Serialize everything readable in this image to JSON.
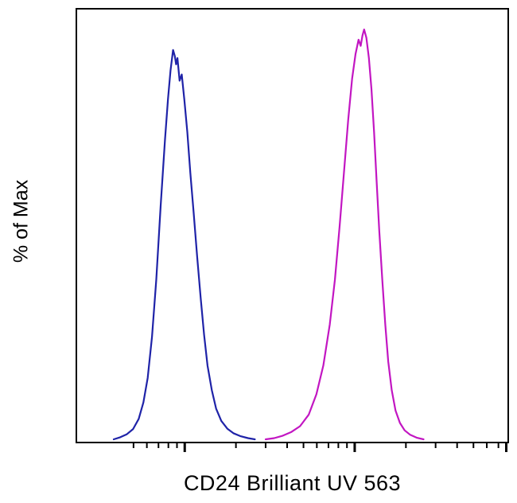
{
  "figure": {
    "background_color": "#ffffff",
    "border_color": "#000000"
  },
  "chart_data": {
    "type": "line",
    "subtype": "flow-cytometry-histogram",
    "title": "",
    "xlabel": "CD24 Brilliant UV 563",
    "ylabel": "% of Max",
    "x_scale": "log",
    "y_range_pct": [
      0,
      100
    ],
    "grid": false,
    "legend": "none",
    "series": [
      {
        "name": "blue",
        "color": "#1f23a8",
        "points": [
          [
            0.085,
            0
          ],
          [
            0.1,
            0.5
          ],
          [
            0.115,
            1.2
          ],
          [
            0.13,
            2.5
          ],
          [
            0.143,
            5
          ],
          [
            0.154,
            9
          ],
          [
            0.164,
            15
          ],
          [
            0.174,
            25
          ],
          [
            0.184,
            39
          ],
          [
            0.194,
            57
          ],
          [
            0.204,
            73
          ],
          [
            0.211,
            83
          ],
          [
            0.217,
            90
          ],
          [
            0.223,
            95
          ],
          [
            0.227,
            93.5
          ],
          [
            0.23,
            91.5
          ],
          [
            0.233,
            93
          ],
          [
            0.238,
            87.5
          ],
          [
            0.243,
            89
          ],
          [
            0.249,
            83
          ],
          [
            0.256,
            75
          ],
          [
            0.263,
            65
          ],
          [
            0.271,
            55
          ],
          [
            0.279,
            44.5
          ],
          [
            0.287,
            34.5
          ],
          [
            0.295,
            25.5
          ],
          [
            0.303,
            18
          ],
          [
            0.313,
            12
          ],
          [
            0.323,
            7.5
          ],
          [
            0.335,
            4.5
          ],
          [
            0.349,
            2.6
          ],
          [
            0.363,
            1.5
          ],
          [
            0.379,
            0.8
          ],
          [
            0.397,
            0.3
          ],
          [
            0.413,
            0
          ]
        ]
      },
      {
        "name": "magenta",
        "color": "#c216c2",
        "points": [
          [
            0.438,
            0
          ],
          [
            0.458,
            0.3
          ],
          [
            0.478,
            0.9
          ],
          [
            0.498,
            1.8
          ],
          [
            0.518,
            3.2
          ],
          [
            0.538,
            6
          ],
          [
            0.556,
            11
          ],
          [
            0.572,
            18
          ],
          [
            0.587,
            28
          ],
          [
            0.599,
            39
          ],
          [
            0.61,
            52
          ],
          [
            0.62,
            65
          ],
          [
            0.63,
            78
          ],
          [
            0.639,
            88
          ],
          [
            0.647,
            94
          ],
          [
            0.654,
            97.5
          ],
          [
            0.659,
            96
          ],
          [
            0.663,
            98.5
          ],
          [
            0.667,
            100
          ],
          [
            0.672,
            98
          ],
          [
            0.678,
            93
          ],
          [
            0.684,
            85.5
          ],
          [
            0.69,
            75
          ],
          [
            0.696,
            63
          ],
          [
            0.702,
            51
          ],
          [
            0.709,
            39
          ],
          [
            0.716,
            28
          ],
          [
            0.723,
            19
          ],
          [
            0.731,
            12
          ],
          [
            0.74,
            7
          ],
          [
            0.75,
            4
          ],
          [
            0.761,
            2.2
          ],
          [
            0.774,
            1.1
          ],
          [
            0.789,
            0.4
          ],
          [
            0.805,
            0
          ]
        ]
      }
    ],
    "ticks": {
      "minor": [
        0.131,
        0.162,
        0.189,
        0.212,
        0.232,
        0.369,
        0.438,
        0.488,
        0.526,
        0.557,
        0.584,
        0.607,
        0.627,
        0.764,
        0.833,
        0.883,
        0.921,
        0.952,
        0.979
      ],
      "major": [
        0.25,
        0.645,
        0.998
      ]
    }
  }
}
